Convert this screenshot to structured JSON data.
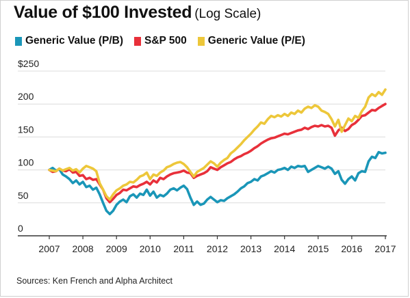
{
  "title": "Value of $100 Invested",
  "subtitle": "(Log Scale)",
  "source": "Sources: Ken French and Alpha Architect",
  "colors": {
    "pb": "#1a96b8",
    "sp": "#e8303a",
    "pe": "#edc73a",
    "grid": "#dcdcdc",
    "axis": "#333333"
  },
  "chart_data": {
    "type": "line",
    "title": "Value of $100 Invested",
    "subtitle": "(Log Scale)",
    "xlabel": "",
    "ylabel": "",
    "xlim": [
      2007,
      2017
    ],
    "ylim": [
      0,
      250
    ],
    "grid": true,
    "legend_position": "top",
    "x_ticks": [
      "2007",
      "2008",
      "2009",
      "2010",
      "2011",
      "2012",
      "2013",
      "2014",
      "2015",
      "2016",
      "2017"
    ],
    "y_ticks": [
      {
        "value": 0,
        "label": "0"
      },
      {
        "value": 50,
        "label": "50"
      },
      {
        "value": 100,
        "label": "100"
      },
      {
        "value": 150,
        "label": "150"
      },
      {
        "value": 200,
        "label": "200"
      },
      {
        "value": 250,
        "label": "$250"
      }
    ],
    "series": [
      {
        "name": "Generic Value (P/B)",
        "color": "#1a96b8",
        "points": [
          [
            2007.0,
            100
          ],
          [
            2007.1,
            103
          ],
          [
            2007.2,
            99
          ],
          [
            2007.3,
            101
          ],
          [
            2007.4,
            93
          ],
          [
            2007.5,
            90
          ],
          [
            2007.6,
            86
          ],
          [
            2007.7,
            80
          ],
          [
            2007.8,
            84
          ],
          [
            2007.9,
            78
          ],
          [
            2008.0,
            82
          ],
          [
            2008.1,
            74
          ],
          [
            2008.2,
            76
          ],
          [
            2008.3,
            70
          ],
          [
            2008.4,
            73
          ],
          [
            2008.5,
            63
          ],
          [
            2008.6,
            50
          ],
          [
            2008.7,
            38
          ],
          [
            2008.8,
            33
          ],
          [
            2008.9,
            38
          ],
          [
            2009.0,
            47
          ],
          [
            2009.1,
            52
          ],
          [
            2009.2,
            55
          ],
          [
            2009.3,
            51
          ],
          [
            2009.4,
            60
          ],
          [
            2009.5,
            63
          ],
          [
            2009.6,
            58
          ],
          [
            2009.7,
            64
          ],
          [
            2009.8,
            62
          ],
          [
            2009.9,
            70
          ],
          [
            2010.0,
            61
          ],
          [
            2010.1,
            67
          ],
          [
            2010.2,
            58
          ],
          [
            2010.3,
            62
          ],
          [
            2010.4,
            60
          ],
          [
            2010.5,
            64
          ],
          [
            2010.6,
            70
          ],
          [
            2010.7,
            72
          ],
          [
            2010.8,
            69
          ],
          [
            2010.9,
            73
          ],
          [
            2011.0,
            76
          ],
          [
            2011.1,
            71
          ],
          [
            2011.2,
            58
          ],
          [
            2011.3,
            47
          ],
          [
            2011.4,
            52
          ],
          [
            2011.5,
            47
          ],
          [
            2011.6,
            49
          ],
          [
            2011.7,
            55
          ],
          [
            2011.8,
            59
          ],
          [
            2011.9,
            55
          ],
          [
            2012.0,
            51
          ],
          [
            2012.1,
            54
          ],
          [
            2012.2,
            53
          ],
          [
            2012.3,
            57
          ],
          [
            2012.4,
            60
          ],
          [
            2012.5,
            63
          ],
          [
            2012.6,
            67
          ],
          [
            2012.7,
            72
          ],
          [
            2012.8,
            75
          ],
          [
            2012.9,
            80
          ],
          [
            2013.0,
            82
          ],
          [
            2013.1,
            86
          ],
          [
            2013.2,
            84
          ],
          [
            2013.3,
            90
          ],
          [
            2013.4,
            92
          ],
          [
            2013.5,
            95
          ],
          [
            2013.6,
            98
          ],
          [
            2013.7,
            96
          ],
          [
            2013.8,
            100
          ],
          [
            2013.9,
            101
          ],
          [
            2014.0,
            103
          ],
          [
            2014.1,
            100
          ],
          [
            2014.2,
            105
          ],
          [
            2014.3,
            103
          ],
          [
            2014.4,
            106
          ],
          [
            2014.5,
            105
          ],
          [
            2014.6,
            106
          ],
          [
            2014.7,
            97
          ],
          [
            2014.8,
            100
          ],
          [
            2014.9,
            103
          ],
          [
            2015.0,
            106
          ],
          [
            2015.1,
            104
          ],
          [
            2015.2,
            102
          ],
          [
            2015.3,
            105
          ],
          [
            2015.4,
            102
          ],
          [
            2015.5,
            94
          ],
          [
            2015.6,
            98
          ],
          [
            2015.7,
            85
          ],
          [
            2015.8,
            79
          ],
          [
            2015.9,
            86
          ],
          [
            2016.0,
            90
          ],
          [
            2016.1,
            84
          ],
          [
            2016.2,
            95
          ],
          [
            2016.3,
            98
          ],
          [
            2016.4,
            97
          ],
          [
            2016.5,
            113
          ],
          [
            2016.6,
            120
          ],
          [
            2016.7,
            118
          ],
          [
            2016.8,
            127
          ],
          [
            2016.9,
            125
          ],
          [
            2017.0,
            126
          ]
        ]
      },
      {
        "name": "S&P 500",
        "color": "#e8303a",
        "points": [
          [
            2007.0,
            100
          ],
          [
            2007.1,
            97
          ],
          [
            2007.2,
            98
          ],
          [
            2007.3,
            102
          ],
          [
            2007.4,
            99
          ],
          [
            2007.5,
            98
          ],
          [
            2007.6,
            101
          ],
          [
            2007.7,
            96
          ],
          [
            2007.8,
            97
          ],
          [
            2007.9,
            91
          ],
          [
            2008.0,
            92
          ],
          [
            2008.1,
            86
          ],
          [
            2008.2,
            88
          ],
          [
            2008.3,
            85
          ],
          [
            2008.4,
            86
          ],
          [
            2008.5,
            78
          ],
          [
            2008.6,
            70
          ],
          [
            2008.7,
            57
          ],
          [
            2008.8,
            51
          ],
          [
            2008.9,
            56
          ],
          [
            2009.0,
            62
          ],
          [
            2009.1,
            65
          ],
          [
            2009.2,
            70
          ],
          [
            2009.3,
            69
          ],
          [
            2009.4,
            72
          ],
          [
            2009.5,
            75
          ],
          [
            2009.6,
            74
          ],
          [
            2009.7,
            77
          ],
          [
            2009.8,
            79
          ],
          [
            2009.9,
            82
          ],
          [
            2010.0,
            78
          ],
          [
            2010.1,
            84
          ],
          [
            2010.2,
            81
          ],
          [
            2010.3,
            88
          ],
          [
            2010.4,
            86
          ],
          [
            2010.5,
            90
          ],
          [
            2010.6,
            93
          ],
          [
            2010.7,
            95
          ],
          [
            2010.8,
            96
          ],
          [
            2010.9,
            97
          ],
          [
            2011.0,
            99
          ],
          [
            2011.1,
            96
          ],
          [
            2011.2,
            95
          ],
          [
            2011.3,
            88
          ],
          [
            2011.4,
            91
          ],
          [
            2011.5,
            93
          ],
          [
            2011.6,
            95
          ],
          [
            2011.7,
            98
          ],
          [
            2011.8,
            104
          ],
          [
            2011.9,
            102
          ],
          [
            2012.0,
            100
          ],
          [
            2012.1,
            104
          ],
          [
            2012.2,
            107
          ],
          [
            2012.3,
            110
          ],
          [
            2012.4,
            112
          ],
          [
            2012.5,
            116
          ],
          [
            2012.6,
            119
          ],
          [
            2012.7,
            121
          ],
          [
            2012.8,
            124
          ],
          [
            2012.9,
            126
          ],
          [
            2013.0,
            129
          ],
          [
            2013.1,
            133
          ],
          [
            2013.2,
            136
          ],
          [
            2013.3,
            140
          ],
          [
            2013.4,
            143
          ],
          [
            2013.5,
            146
          ],
          [
            2013.6,
            148
          ],
          [
            2013.7,
            149
          ],
          [
            2013.8,
            151
          ],
          [
            2013.9,
            153
          ],
          [
            2014.0,
            155
          ],
          [
            2014.1,
            154
          ],
          [
            2014.2,
            156
          ],
          [
            2014.3,
            158
          ],
          [
            2014.4,
            160
          ],
          [
            2014.5,
            161
          ],
          [
            2014.6,
            164
          ],
          [
            2014.7,
            162
          ],
          [
            2014.8,
            165
          ],
          [
            2014.9,
            167
          ],
          [
            2015.0,
            166
          ],
          [
            2015.1,
            168
          ],
          [
            2015.2,
            166
          ],
          [
            2015.3,
            167
          ],
          [
            2015.4,
            164
          ],
          [
            2015.5,
            152
          ],
          [
            2015.6,
            160
          ],
          [
            2015.7,
            164
          ],
          [
            2015.8,
            159
          ],
          [
            2015.9,
            162
          ],
          [
            2016.0,
            168
          ],
          [
            2016.1,
            171
          ],
          [
            2016.2,
            176
          ],
          [
            2016.3,
            182
          ],
          [
            2016.4,
            183
          ],
          [
            2016.5,
            187
          ],
          [
            2016.6,
            191
          ],
          [
            2016.7,
            190
          ],
          [
            2016.8,
            194
          ],
          [
            2016.9,
            197
          ],
          [
            2017.0,
            200
          ]
        ]
      },
      {
        "name": "Generic Value (P/E)",
        "color": "#edc73a",
        "points": [
          [
            2007.0,
            100
          ],
          [
            2007.1,
            99
          ],
          [
            2007.2,
            98
          ],
          [
            2007.3,
            102
          ],
          [
            2007.4,
            99
          ],
          [
            2007.5,
            101
          ],
          [
            2007.6,
            103
          ],
          [
            2007.7,
            99
          ],
          [
            2007.8,
            101
          ],
          [
            2007.9,
            96
          ],
          [
            2008.0,
            102
          ],
          [
            2008.1,
            106
          ],
          [
            2008.2,
            104
          ],
          [
            2008.3,
            102
          ],
          [
            2008.4,
            98
          ],
          [
            2008.5,
            80
          ],
          [
            2008.6,
            70
          ],
          [
            2008.7,
            60
          ],
          [
            2008.8,
            55
          ],
          [
            2008.9,
            63
          ],
          [
            2009.0,
            69
          ],
          [
            2009.1,
            72
          ],
          [
            2009.2,
            76
          ],
          [
            2009.3,
            78
          ],
          [
            2009.4,
            82
          ],
          [
            2009.5,
            81
          ],
          [
            2009.6,
            85
          ],
          [
            2009.7,
            90
          ],
          [
            2009.8,
            92
          ],
          [
            2009.9,
            96
          ],
          [
            2010.0,
            86
          ],
          [
            2010.1,
            93
          ],
          [
            2010.2,
            91
          ],
          [
            2010.3,
            96
          ],
          [
            2010.4,
            99
          ],
          [
            2010.5,
            104
          ],
          [
            2010.6,
            106
          ],
          [
            2010.7,
            109
          ],
          [
            2010.8,
            111
          ],
          [
            2010.9,
            112
          ],
          [
            2011.0,
            109
          ],
          [
            2011.1,
            104
          ],
          [
            2011.2,
            97
          ],
          [
            2011.3,
            90
          ],
          [
            2011.4,
            97
          ],
          [
            2011.5,
            100
          ],
          [
            2011.6,
            103
          ],
          [
            2011.7,
            108
          ],
          [
            2011.8,
            113
          ],
          [
            2011.9,
            110
          ],
          [
            2012.0,
            105
          ],
          [
            2012.1,
            111
          ],
          [
            2012.2,
            115
          ],
          [
            2012.3,
            118
          ],
          [
            2012.4,
            125
          ],
          [
            2012.5,
            129
          ],
          [
            2012.6,
            134
          ],
          [
            2012.7,
            139
          ],
          [
            2012.8,
            145
          ],
          [
            2012.9,
            150
          ],
          [
            2013.0,
            155
          ],
          [
            2013.1,
            161
          ],
          [
            2013.2,
            166
          ],
          [
            2013.3,
            172
          ],
          [
            2013.4,
            170
          ],
          [
            2013.5,
            177
          ],
          [
            2013.6,
            182
          ],
          [
            2013.7,
            180
          ],
          [
            2013.8,
            183
          ],
          [
            2013.9,
            181
          ],
          [
            2014.0,
            185
          ],
          [
            2014.1,
            182
          ],
          [
            2014.2,
            187
          ],
          [
            2014.3,
            185
          ],
          [
            2014.4,
            190
          ],
          [
            2014.5,
            187
          ],
          [
            2014.6,
            193
          ],
          [
            2014.7,
            196
          ],
          [
            2014.8,
            194
          ],
          [
            2014.9,
            198
          ],
          [
            2015.0,
            196
          ],
          [
            2015.1,
            190
          ],
          [
            2015.2,
            188
          ],
          [
            2015.3,
            185
          ],
          [
            2015.4,
            177
          ],
          [
            2015.5,
            166
          ],
          [
            2015.6,
            176
          ],
          [
            2015.7,
            158
          ],
          [
            2015.8,
            168
          ],
          [
            2015.9,
            178
          ],
          [
            2016.0,
            174
          ],
          [
            2016.1,
            182
          ],
          [
            2016.2,
            179
          ],
          [
            2016.3,
            189
          ],
          [
            2016.4,
            196
          ],
          [
            2016.5,
            210
          ],
          [
            2016.6,
            215
          ],
          [
            2016.7,
            212
          ],
          [
            2016.8,
            218
          ],
          [
            2016.9,
            214
          ],
          [
            2017.0,
            222
          ]
        ]
      }
    ]
  }
}
